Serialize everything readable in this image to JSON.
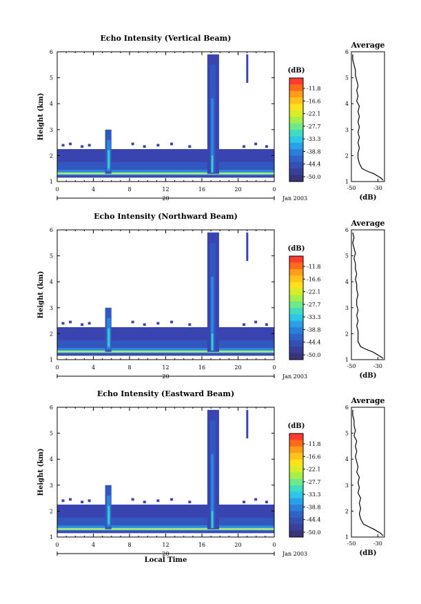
{
  "chart_data": [
    {
      "type": "heatmap",
      "title": "Echo Intensity (Vertical Beam)",
      "ylabel": "Height (km)",
      "y_ticks": [
        "1",
        "2",
        "3",
        "4",
        "5",
        "6"
      ],
      "x_ticks": [
        "0",
        "4",
        "8",
        "12",
        "16",
        "20",
        "0"
      ],
      "date_day": "20",
      "date_label": "Jan 2003",
      "xlim": [
        0,
        24
      ],
      "ylim": [
        1,
        6
      ],
      "colorbar_unit": "(dB)",
      "colorbar_ticks": [
        "-11.8",
        "-16.6",
        "-22.1",
        "-27.7",
        "-33.3",
        "-38.8",
        "-44.4",
        "-50.0"
      ],
      "profile": {
        "title": "Average",
        "xlabel": "(dB)",
        "x_ticks": [
          "-50",
          "-30"
        ],
        "y_ticks": [
          "1",
          "2",
          "3",
          "4",
          "5",
          "6"
        ],
        "xlim": [
          -50,
          -25
        ],
        "heights": [
          1.05,
          1.15,
          1.3,
          1.4,
          1.5,
          1.7,
          1.9,
          2.1,
          2.3,
          2.5,
          2.7,
          2.9,
          3.1,
          3.3,
          3.5,
          3.7,
          3.9,
          4.1,
          4.3,
          4.5,
          4.7,
          4.9,
          5.1,
          5.3,
          5.5,
          5.7,
          5.9
        ],
        "values": [
          -26,
          -28,
          -33,
          -38,
          -42,
          -44,
          -45,
          -45,
          -44,
          -45,
          -44,
          -45,
          -44,
          -45,
          -44,
          -45,
          -44,
          -46,
          -45,
          -46,
          -45,
          -46,
          -47,
          -47,
          -48,
          -49,
          -49
        ]
      }
    },
    {
      "type": "heatmap",
      "title": "Echo Intensity (Northward Beam)",
      "ylabel": "Height (km)",
      "y_ticks": [
        "1",
        "2",
        "3",
        "4",
        "5",
        "6"
      ],
      "x_ticks": [
        "0",
        "4",
        "8",
        "12",
        "16",
        "20",
        "0"
      ],
      "date_day": "20",
      "date_label": "Jan 2003",
      "xlim": [
        0,
        24
      ],
      "ylim": [
        1,
        6
      ],
      "colorbar_unit": "(dB)",
      "colorbar_ticks": [
        "-11.8",
        "-16.6",
        "-22.1",
        "-27.7",
        "-33.3",
        "-38.8",
        "-44.4",
        "-50.0"
      ],
      "profile": {
        "title": "Average",
        "xlabel": "(dB)",
        "x_ticks": [
          "-50",
          "-30"
        ],
        "y_ticks": [
          "1",
          "2",
          "3",
          "4",
          "5",
          "6"
        ],
        "xlim": [
          -50,
          -25
        ],
        "heights": [
          1.05,
          1.15,
          1.3,
          1.4,
          1.5,
          1.7,
          1.9,
          2.1,
          2.3,
          2.5,
          2.7,
          2.9,
          3.1,
          3.3,
          3.5,
          3.7,
          3.9,
          4.1,
          4.3,
          4.5,
          4.7,
          4.9,
          5.1,
          5.3,
          5.5,
          5.7,
          5.9
        ],
        "values": [
          -26,
          -29,
          -34,
          -39,
          -43,
          -45,
          -45,
          -45,
          -46,
          -45,
          -46,
          -45,
          -46,
          -46,
          -45,
          -46,
          -46,
          -47,
          -46,
          -47,
          -47,
          -48,
          -47,
          -48,
          -49,
          -48,
          -49
        ]
      }
    },
    {
      "type": "heatmap",
      "title": "Echo Intensity (Eastward Beam)",
      "ylabel": "Height (km)",
      "xlabel": "Local Time",
      "y_ticks": [
        "1",
        "2",
        "3",
        "4",
        "5",
        "6"
      ],
      "x_ticks": [
        "0",
        "4",
        "8",
        "12",
        "16",
        "20",
        "0"
      ],
      "date_day": "20",
      "date_label": "Jan 2003",
      "xlim": [
        0,
        24
      ],
      "ylim": [
        1,
        6
      ],
      "colorbar_unit": "(dB)",
      "colorbar_ticks": [
        "-11.8",
        "-16.6",
        "-22.1",
        "-27.7",
        "-33.3",
        "-38.8",
        "-44.4",
        "-50.0"
      ],
      "profile": {
        "title": "Average",
        "xlabel": "(dB)",
        "x_ticks": [
          "-50",
          "-30"
        ],
        "y_ticks": [
          "1",
          "2",
          "3",
          "4",
          "5",
          "6"
        ],
        "xlim": [
          -50,
          -25
        ],
        "heights": [
          1.05,
          1.15,
          1.3,
          1.4,
          1.5,
          1.7,
          1.9,
          2.1,
          2.3,
          2.5,
          2.7,
          2.9,
          3.1,
          3.3,
          3.5,
          3.7,
          3.9,
          4.1,
          4.3,
          4.5,
          4.7,
          4.9,
          5.1,
          5.3,
          5.5,
          5.7,
          5.9
        ],
        "values": [
          -26,
          -28,
          -33,
          -37,
          -41,
          -43,
          -44,
          -43,
          -44,
          -43,
          -45,
          -44,
          -45,
          -44,
          -46,
          -45,
          -46,
          -47,
          -46,
          -47,
          -46,
          -48,
          -47,
          -48,
          -48,
          -49,
          -49
        ]
      }
    }
  ],
  "colors": {
    "colorbar": [
      "#ff3b30",
      "#ff6a1a",
      "#ff9c1a",
      "#ffc21a",
      "#ffe21a",
      "#d8ec2a",
      "#a8ee4a",
      "#6fe88a",
      "#3fdcc0",
      "#2ec6e6",
      "#2aa0e8",
      "#2a80d8",
      "#2f63c8",
      "#3550b0",
      "#3a3f98",
      "#383478"
    ],
    "echo_low": "#3a44b0",
    "echo_mid": "#2e86dc",
    "echo_high": "#38d0cc",
    "echo_peak": "#d8ec5a"
  }
}
